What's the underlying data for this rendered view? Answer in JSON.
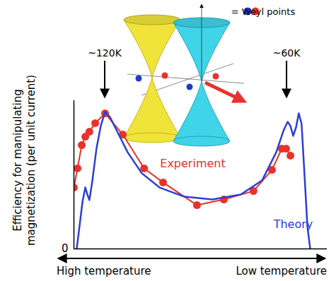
{
  "chart_data": {
    "type": "line",
    "ylabel": "Efficiency for manipulating\nmagnetization (per unit current)",
    "x_axis_labels": [
      "High temperature",
      "Low temperature"
    ],
    "xlim": [
      0,
      100
    ],
    "xticks": [],
    "ylim": [
      0,
      100
    ],
    "yticks": [
      0
    ],
    "tick_labels": "y",
    "series": [
      {
        "name": "Experiment",
        "color": "#e8322a",
        "marker": "circle",
        "x": [
          0,
          1.4,
          3.1,
          4.5,
          6.1,
          8.4,
          12.3,
          19.3,
          27.7,
          35.2,
          48.6,
          59.2,
          70.9,
          78.2,
          82.1,
          83.8,
          85.5
        ],
        "values": [
          41.4,
          54.3,
          70,
          75.7,
          79,
          84.8,
          91.4,
          77.1,
          54.3,
          44.8,
          29.5,
          33.3,
          39,
          53.3,
          67.6,
          67.6,
          62.9
        ]
      },
      {
        "name": "Theory",
        "color": "#2a3fd6",
        "marker": "none",
        "x": [
          1.1,
          2.2,
          3.4,
          4.5,
          5.3,
          6.1,
          7.3,
          8.9,
          10.6,
          12.3,
          14.2,
          17,
          21.2,
          26.8,
          33.8,
          43.6,
          54.7,
          65.9,
          74.3,
          79.9,
          82.7,
          84.4,
          85.5,
          86.6,
          87.7,
          88.8,
          89.9,
          91.1,
          92.2,
          93.3
        ],
        "values": [
          0,
          15.2,
          31.9,
          41.4,
          36.7,
          32.9,
          46.2,
          67.6,
          82.9,
          92.4,
          89,
          79.5,
          65.2,
          51,
          41.4,
          35.2,
          33.3,
          36.7,
          46.2,
          65.2,
          79.5,
          85.7,
          82.9,
          76.2,
          81.9,
          91.4,
          84.3,
          48.6,
          15.2,
          0
        ]
      }
    ],
    "annotations": [
      {
        "text": "~120K",
        "x": 12.3
      },
      {
        "text": "~60K",
        "x": 84.1
      }
    ],
    "inset_legend": {
      "text": "= Weyl points",
      "colors": [
        "#1f3ad0",
        "#e8322a"
      ]
    }
  }
}
